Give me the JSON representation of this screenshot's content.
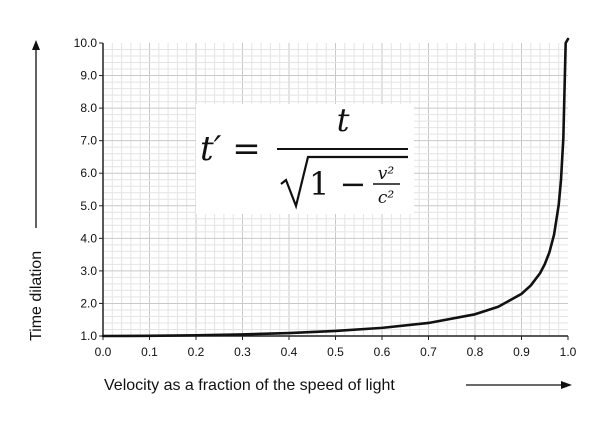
{
  "chart_data": {
    "type": "line",
    "xlabel": "Velocity as a fraction of the speed of light",
    "ylabel": "Time dilation",
    "xlim": [
      0.0,
      1.0
    ],
    "ylim": [
      1.0,
      10.0
    ],
    "x_ticks": [
      "0.0",
      "0.1",
      "0.2",
      "0.3",
      "0.4",
      "0.5",
      "0.6",
      "0.7",
      "0.8",
      "0.9",
      "1.0"
    ],
    "y_ticks": [
      "1.0",
      "2.0",
      "3.0",
      "4.0",
      "5.0",
      "6.0",
      "7.0",
      "8.0",
      "9.0",
      "10.0"
    ],
    "grid": true,
    "series": [
      {
        "color": "#111111",
        "x": [
          0.0,
          0.1,
          0.2,
          0.3,
          0.4,
          0.5,
          0.6,
          0.7,
          0.8,
          0.85,
          0.9,
          0.92,
          0.94,
          0.95,
          0.96,
          0.97,
          0.98,
          0.985,
          0.99,
          0.995
        ],
        "y": [
          1.0,
          1.005,
          1.021,
          1.048,
          1.091,
          1.155,
          1.25,
          1.4,
          1.667,
          1.898,
          2.294,
          2.552,
          2.931,
          3.203,
          3.571,
          4.113,
          5.025,
          5.803,
          7.089,
          10.0
        ]
      }
    ],
    "annotation": {
      "lhs": "t′ =",
      "numerator": "t",
      "radicand_one": "1 −",
      "v_sq_num": "v²",
      "c_sq_den": "c²"
    }
  }
}
